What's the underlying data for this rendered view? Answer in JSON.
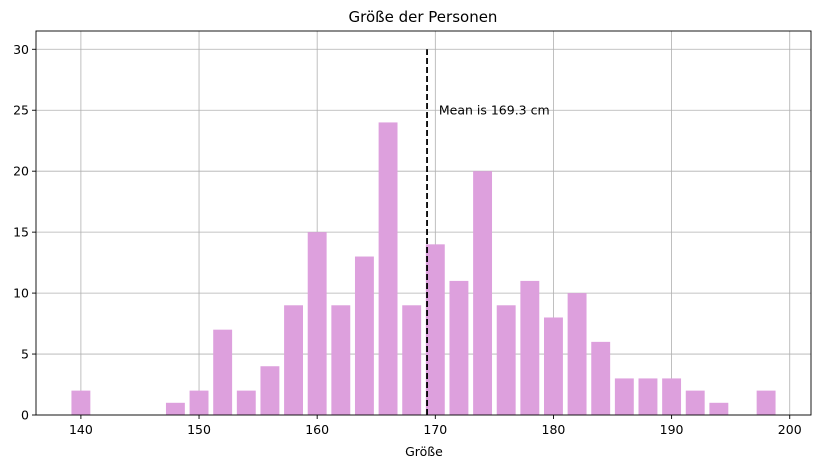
{
  "chart_data": {
    "type": "bar",
    "title": "Größe der Personen",
    "xlabel": "Größe",
    "ylabel": "",
    "x": [
      140,
      148,
      150,
      152,
      154,
      156,
      158,
      160,
      162,
      164,
      166,
      168,
      170,
      172,
      174,
      176,
      178,
      180,
      182,
      184,
      186,
      188,
      190,
      192,
      194,
      198
    ],
    "values": [
      2,
      1,
      2,
      7,
      2,
      4,
      9,
      15,
      9,
      13,
      24,
      9,
      14,
      11,
      20,
      9,
      11,
      8,
      10,
      6,
      3,
      3,
      3,
      2,
      1,
      2
    ],
    "bar_width": 1.6,
    "xlim": [
      136.2,
      201.8
    ],
    "ylim": [
      0,
      31.5
    ],
    "xticks": [
      140,
      150,
      160,
      170,
      180,
      190,
      200
    ],
    "yticks": [
      0,
      5,
      10,
      15,
      20,
      25,
      30
    ],
    "grid": true,
    "bar_color": "#dda0dd",
    "mean_line": {
      "x": 169.3,
      "y_from": 0,
      "y_to": 30,
      "color": "#000000",
      "style": "dashed"
    },
    "annotation": {
      "text": "Mean is 169.3 cm",
      "x": 170.3,
      "y": 25
    }
  }
}
